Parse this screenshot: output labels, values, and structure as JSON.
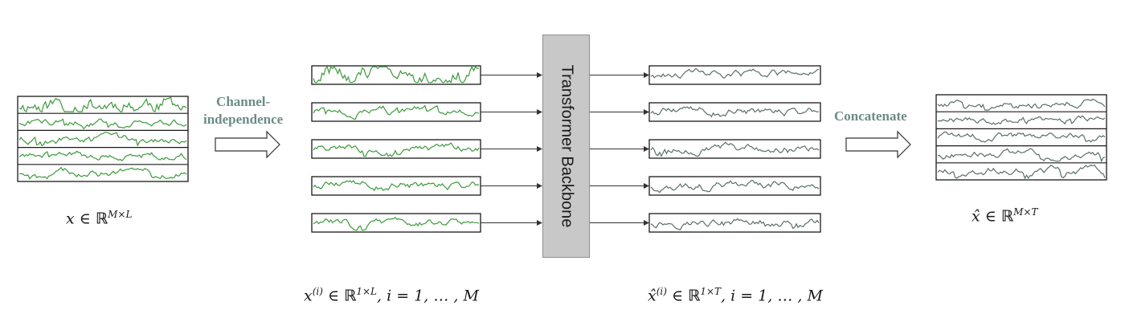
{
  "labels": {
    "channel_independence_line1": "Channel-",
    "channel_independence_line2": "independence",
    "concatenate": "Concatenate",
    "backbone": "Transformer Backbone",
    "x_symbol": "x",
    "x_hat_symbol": "x̂",
    "in_symbol": "∈",
    "reals": "ℝ",
    "input_shape": "M×L",
    "output_shape": "M×T",
    "channel_input_shape": "1×L",
    "channel_output_shape": "1×T",
    "channel_superscript": "(i)",
    "channel_index": ", i = 1, … , M"
  },
  "colors": {
    "input_series": "#3c9a3c",
    "output_series": "#5a6f6a",
    "step_text": "#6b8c86",
    "backbone_fill": "#c8c8c8",
    "frame": "#1a1a1a",
    "arrow": "#333333"
  },
  "channels": 5
}
